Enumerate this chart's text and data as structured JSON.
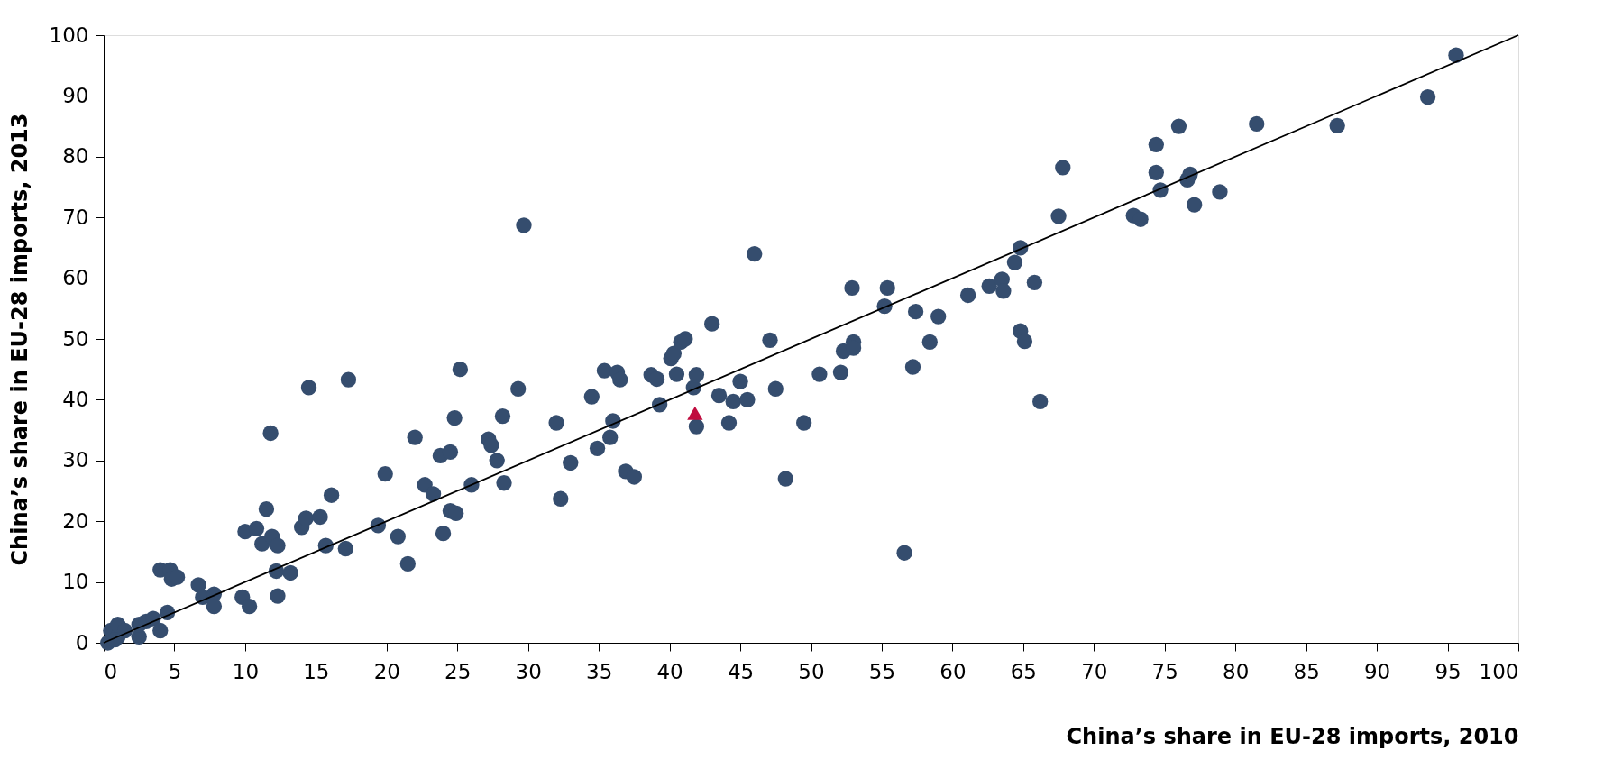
{
  "chart_data": {
    "type": "scatter",
    "xlabel": "China’s share in EU-28 imports, 2010",
    "ylabel": "China’s share in EU-28 imports, 2013",
    "xlim": [
      0,
      100
    ],
    "ylim": [
      0,
      100
    ],
    "xticks": [
      0,
      5,
      10,
      15,
      20,
      25,
      30,
      35,
      40,
      45,
      50,
      55,
      60,
      65,
      70,
      75,
      80,
      85,
      90,
      95,
      100
    ],
    "yticks": [
      0,
      10,
      20,
      30,
      40,
      50,
      60,
      70,
      80,
      90,
      100
    ],
    "series": [
      {
        "marker": "circle",
        "color": "#354d6e",
        "x": [
          0.3,
          0.5,
          1,
          1,
          0.8,
          1.5,
          2.5,
          2.5,
          3,
          3.5,
          4,
          4,
          4.5,
          4.7,
          4.8,
          5.2,
          6.7,
          7,
          7.8,
          7.8,
          9.8,
          10,
          10.3,
          10.8,
          11.2,
          11.5,
          11.8,
          11.9,
          12.2,
          12.3,
          12.3,
          13.2,
          14,
          14.3,
          14.5,
          15.3,
          15.7,
          16.1,
          17.1,
          17.3,
          19.4,
          19.9,
          20.8,
          21.5,
          22,
          22.7,
          23.3,
          23.8,
          24,
          24.5,
          24.5,
          24.9,
          24.8,
          25.2,
          26,
          27.2,
          27.4,
          27.8,
          28.2,
          28.3,
          29.3,
          29.7,
          32,
          32.3,
          33,
          34.5,
          34.9,
          35.4,
          35.8,
          36,
          36.3,
          36.5,
          36.9,
          37.5,
          38.7,
          39.1,
          39.3,
          40.1,
          40.3,
          40.5,
          40.8,
          41.1,
          41.7,
          41.9,
          41.9,
          43,
          43.5,
          44.2,
          44.5,
          45,
          45.5,
          46,
          47.1,
          47.5,
          48.2,
          49.5,
          50.6,
          52.1,
          52.3,
          52.9,
          53,
          53,
          55.2,
          55.4,
          56.6,
          57.2,
          57.4,
          58.4,
          59,
          61.1,
          62.6,
          63.5,
          63.6,
          64.4,
          64.8,
          64.8,
          65.1,
          65.8,
          66.2,
          67.5,
          67.8,
          72.8,
          73.3,
          74.4,
          74.4,
          74.7,
          76,
          76.6,
          76.8,
          77.1,
          78.9,
          81.5,
          87.2,
          93.6,
          95.6
        ],
        "values": [
          0,
          2,
          1,
          3,
          0.5,
          2,
          1,
          3,
          3.5,
          4,
          2,
          12,
          5,
          12,
          10.5,
          10.8,
          9.5,
          7.5,
          8,
          6,
          7.5,
          18.3,
          6,
          18.8,
          16.3,
          22,
          34.5,
          17.5,
          11.8,
          16,
          7.7,
          11.5,
          19,
          20.5,
          42,
          20.7,
          16,
          24.3,
          15.5,
          43.3,
          19.3,
          27.8,
          17.5,
          13,
          33.8,
          26,
          24.5,
          30.8,
          18,
          31.4,
          21.7,
          21.3,
          37,
          45,
          26,
          33.5,
          32.5,
          30,
          37.3,
          26.3,
          41.8,
          68.7,
          36.2,
          23.7,
          29.6,
          40.5,
          32,
          44.8,
          33.8,
          36.5,
          44.5,
          43.3,
          28.2,
          27.3,
          44.1,
          43.4,
          39.2,
          46.8,
          47.6,
          44.2,
          49.5,
          50,
          42,
          44.1,
          35.6,
          52.5,
          40.7,
          36.2,
          39.7,
          43,
          40,
          64,
          49.8,
          41.8,
          27,
          36.2,
          44.2,
          44.5,
          48,
          58.4,
          49.5,
          48.5,
          55.4,
          58.4,
          14.8,
          45.4,
          54.5,
          49.5,
          53.7,
          57.2,
          58.7,
          59.8,
          57.9,
          62.6,
          65,
          51.3,
          49.6,
          59.3,
          39.7,
          70.2,
          78.2,
          70.3,
          69.7,
          82,
          77.4,
          74.5,
          85,
          76.2,
          77.1,
          72.1,
          74.2,
          85.4,
          85.1,
          89.8,
          96.7
        ]
      },
      {
        "marker": "triangle",
        "color": "#c00c3f",
        "x": [
          41.8
        ],
        "values": [
          37.8
        ]
      },
      {
        "type": "line",
        "marker": "none",
        "color": "#000000",
        "x": [
          0,
          100
        ],
        "values": [
          0,
          100
        ]
      }
    ]
  }
}
